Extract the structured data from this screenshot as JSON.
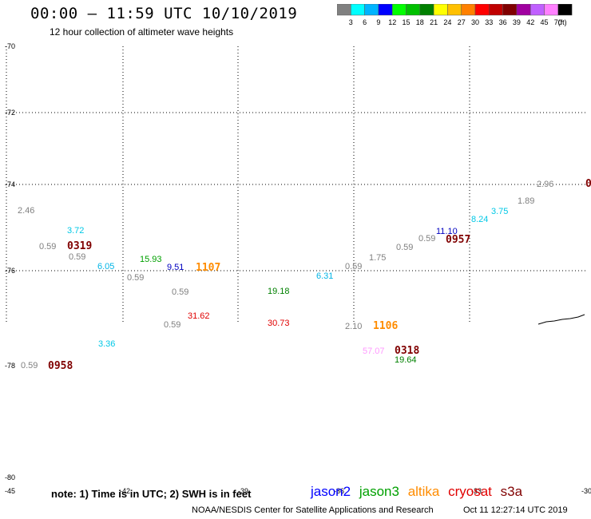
{
  "header": {
    "title": "00:00 – 11:59 UTC 10/10/2019",
    "subtitle": "12 hour collection of altimeter wave heights"
  },
  "colorbar": {
    "colors": [
      "#808080",
      "#00ffff",
      "#00b4ff",
      "#0000ff",
      "#00ff00",
      "#00c000",
      "#008000",
      "#ffff00",
      "#ffc000",
      "#ff8000",
      "#ff0000",
      "#c00000",
      "#800000",
      "#a000a0",
      "#c060ff",
      "#ff80ff",
      "#000000"
    ],
    "labels": [
      "3",
      "6",
      "9",
      "12",
      "15",
      "18",
      "21",
      "24",
      "27",
      "30",
      "33",
      "36",
      "39",
      "42",
      "45",
      "70"
    ],
    "unit": "(ft)"
  },
  "grid": {
    "lat_labels": [
      "-70",
      "-72",
      "-74",
      "-76",
      "-78",
      "-80"
    ],
    "lon_labels": [
      "-45",
      "-42",
      "-39",
      "-36",
      "-33",
      "-30"
    ]
  },
  "observations": [
    {
      "text": "2.46",
      "color": "#808080"
    },
    {
      "text": "3.72",
      "color": "#00c8e6"
    },
    {
      "text": "0.59",
      "color": "#808080"
    },
    {
      "text": "0319",
      "color": "#800000",
      "kind": "time"
    },
    {
      "text": "0.59",
      "color": "#808080"
    },
    {
      "text": "6.05",
      "color": "#00b4e6"
    },
    {
      "text": "15.93",
      "color": "#00a000"
    },
    {
      "text": "9.51",
      "color": "#0000c0"
    },
    {
      "text": "1107",
      "color": "#ff8c00",
      "kind": "time"
    },
    {
      "text": "0.59",
      "color": "#808080"
    },
    {
      "text": "0.59",
      "color": "#808080"
    },
    {
      "text": "19.18",
      "color": "#008000"
    },
    {
      "text": "31.62",
      "color": "#e00000"
    },
    {
      "text": "0.59",
      "color": "#808080"
    },
    {
      "text": "30.73",
      "color": "#e00000"
    },
    {
      "text": "6.31",
      "color": "#00b4e6"
    },
    {
      "text": "0.59",
      "color": "#808080"
    },
    {
      "text": "1.75",
      "color": "#808080"
    },
    {
      "text": "2.10",
      "color": "#808080"
    },
    {
      "text": "1106",
      "color": "#ff8c00",
      "kind": "time"
    },
    {
      "text": "0.59",
      "color": "#808080"
    },
    {
      "text": "0.59",
      "color": "#808080"
    },
    {
      "text": "11.10",
      "color": "#0000c0"
    },
    {
      "text": "0957",
      "color": "#800000",
      "kind": "time"
    },
    {
      "text": "8.24",
      "color": "#00c8e6"
    },
    {
      "text": "3.75",
      "color": "#00c8e6"
    },
    {
      "text": "1.89",
      "color": "#808080"
    },
    {
      "text": "2.96",
      "color": "#808080"
    },
    {
      "text": "0",
      "color": "#800000",
      "kind": "time"
    },
    {
      "text": "3.36",
      "color": "#00c8e6"
    },
    {
      "text": "57.07",
      "color": "#ff99ff"
    },
    {
      "text": "0318",
      "color": "#800000",
      "kind": "time"
    },
    {
      "text": "19.64",
      "color": "#008000"
    },
    {
      "text": "0.59",
      "color": "#808080"
    },
    {
      "text": "0958",
      "color": "#800000",
      "kind": "time"
    }
  ],
  "footer": {
    "note": "note: 1) Time is in UTC; 2) SWH is in feet",
    "satellites": [
      {
        "name": "jason2",
        "color": "#0000ff"
      },
      {
        "name": "jason3",
        "color": "#00a000"
      },
      {
        "name": "altika",
        "color": "#ff8c00"
      },
      {
        "name": "cryosat",
        "color": "#e00000"
      },
      {
        "name": "s3a",
        "color": "#800000"
      }
    ],
    "credit": "NOAA/NESDIS Center for Satellite Applications and Research",
    "timestamp": "Oct 11 12:27:14 UTC 2019"
  }
}
